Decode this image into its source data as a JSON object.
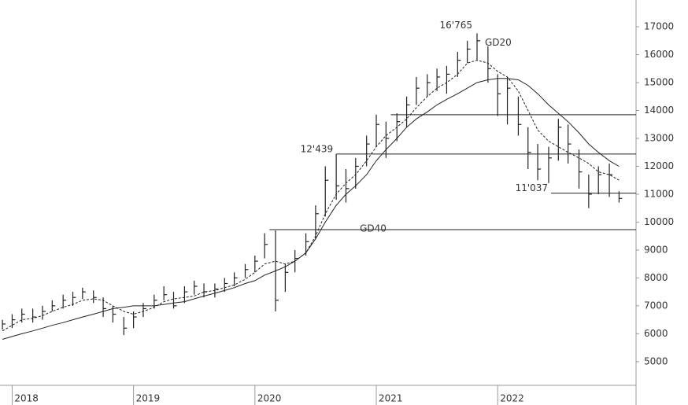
{
  "chart_data": {
    "type": "ohlc",
    "x": [
      2017.92,
      2018.0,
      2018.08,
      2018.17,
      2018.25,
      2018.33,
      2018.42,
      2018.5,
      2018.58,
      2018.67,
      2018.75,
      2018.83,
      2018.92,
      2019.0,
      2019.08,
      2019.17,
      2019.25,
      2019.33,
      2019.42,
      2019.5,
      2019.58,
      2019.67,
      2019.75,
      2019.83,
      2019.92,
      2020.0,
      2020.08,
      2020.17,
      2020.25,
      2020.33,
      2020.42,
      2020.5,
      2020.58,
      2020.67,
      2020.75,
      2020.83,
      2020.92,
      2021.0,
      2021.08,
      2021.17,
      2021.25,
      2021.33,
      2021.42,
      2021.5,
      2021.58,
      2021.67,
      2021.75,
      2021.83,
      2021.92,
      2022.0,
      2022.08,
      2022.17,
      2022.25,
      2022.33,
      2022.42,
      2022.5,
      2022.58,
      2022.67,
      2022.75,
      2022.83,
      2022.92,
      2023.0
    ],
    "values": [
      6350,
      6500,
      6700,
      6600,
      6800,
      7000,
      7200,
      7300,
      7500,
      7300,
      6900,
      6700,
      6200,
      6600,
      6900,
      7200,
      7400,
      7000,
      7500,
      7700,
      7500,
      7600,
      7800,
      8000,
      8300,
      8600,
      9200,
      7200,
      8200,
      8700,
      9300,
      10300,
      11500,
      11300,
      11200,
      12000,
      12800,
      13500,
      13000,
      13600,
      14200,
      14800,
      15000,
      15200,
      15300,
      15800,
      16200,
      16500,
      15500,
      14600,
      14800,
      13500,
      12500,
      11900,
      12300,
      13400,
      12800,
      11800,
      11000,
      11700,
      11700,
      10850
    ],
    "highs": [
      6500,
      6700,
      6900,
      6900,
      7000,
      7200,
      7400,
      7500,
      7650,
      7550,
      7300,
      7000,
      6600,
      6800,
      7100,
      7400,
      7700,
      7500,
      7700,
      7900,
      7800,
      7800,
      8000,
      8200,
      8500,
      8800,
      9600,
      9700,
      8500,
      9000,
      9600,
      10600,
      12000,
      12439,
      11900,
      12300,
      13100,
      13850,
      13600,
      13900,
      14500,
      15200,
      15300,
      15500,
      15600,
      16100,
      16500,
      16765,
      16300,
      15300,
      15200,
      14500,
      13400,
      12800,
      12700,
      13700,
      13500,
      12600,
      11700,
      12000,
      12100,
      11100
    ],
    "lows": [
      6150,
      6200,
      6400,
      6400,
      6500,
      6800,
      6900,
      7000,
      7250,
      7100,
      6600,
      6400,
      5950,
      6200,
      6600,
      6900,
      7200,
      6900,
      7100,
      7400,
      7300,
      7300,
      7500,
      7700,
      8000,
      8200,
      8700,
      6800,
      7500,
      8200,
      8800,
      9400,
      10200,
      10800,
      10700,
      11200,
      12000,
      12700,
      12300,
      12900,
      13400,
      14200,
      14500,
      14700,
      14600,
      15200,
      15700,
      15800,
      15000,
      13800,
      13500,
      13100,
      11900,
      11500,
      11400,
      12200,
      12100,
      11200,
      10500,
      11000,
      10900,
      10700
    ],
    "bar_color": "#222222",
    "series": [
      {
        "name": "GD20",
        "color": "#222222",
        "dashed": true,
        "values": [
          6100,
          6300,
          6500,
          6550,
          6650,
          6800,
          6950,
          7050,
          7200,
          7250,
          7200,
          7000,
          6800,
          6700,
          6800,
          6950,
          7150,
          7250,
          7300,
          7350,
          7500,
          7550,
          7650,
          7750,
          7950,
          8200,
          8500,
          8600,
          8500,
          8600,
          8900,
          9500,
          10300,
          11000,
          11400,
          11700,
          12200,
          12700,
          13100,
          13400,
          13700,
          14100,
          14500,
          14800,
          15000,
          15300,
          15700,
          15800,
          15700,
          15400,
          15200,
          14700,
          14000,
          13300,
          12900,
          12700,
          12500,
          12300,
          12100,
          11800,
          11700,
          11500
        ]
      },
      {
        "name": "GD40",
        "color": "#222222",
        "dashed": false,
        "values": [
          5800,
          5900,
          6000,
          6100,
          6200,
          6300,
          6400,
          6500,
          6600,
          6700,
          6800,
          6900,
          6950,
          7000,
          7000,
          7000,
          7050,
          7100,
          7150,
          7250,
          7350,
          7450,
          7550,
          7650,
          7800,
          7900,
          8100,
          8250,
          8400,
          8600,
          8900,
          9400,
          10000,
          10600,
          11000,
          11300,
          11700,
          12200,
          12600,
          13000,
          13400,
          13700,
          13950,
          14200,
          14400,
          14600,
          14800,
          15000,
          15100,
          15150,
          15150,
          15100,
          14900,
          14600,
          14200,
          13900,
          13600,
          13200,
          12800,
          12500,
          12200,
          12000
        ]
      }
    ],
    "levels": [
      {
        "value": 13850,
        "start": 2021.12
      },
      {
        "value": 12439,
        "label": "12'439",
        "start": 2020.67
      },
      {
        "value": 11037,
        "label": "11'037",
        "start": 2022.44
      },
      {
        "value": 9730,
        "start": 2020.12
      }
    ],
    "annotations": [
      {
        "text": "16'765",
        "value": 16765,
        "x": 2021.83
      }
    ],
    "xlim": [
      2017.9,
      2023.14
    ],
    "xticks": [
      2018,
      2019,
      2020,
      2021,
      2022
    ],
    "ylim": [
      4150,
      17960
    ],
    "yticks": [
      5000,
      6000,
      7000,
      8000,
      9000,
      10000,
      11000,
      12000,
      13000,
      14000,
      15000,
      16000,
      17000
    ],
    "grid": false
  }
}
